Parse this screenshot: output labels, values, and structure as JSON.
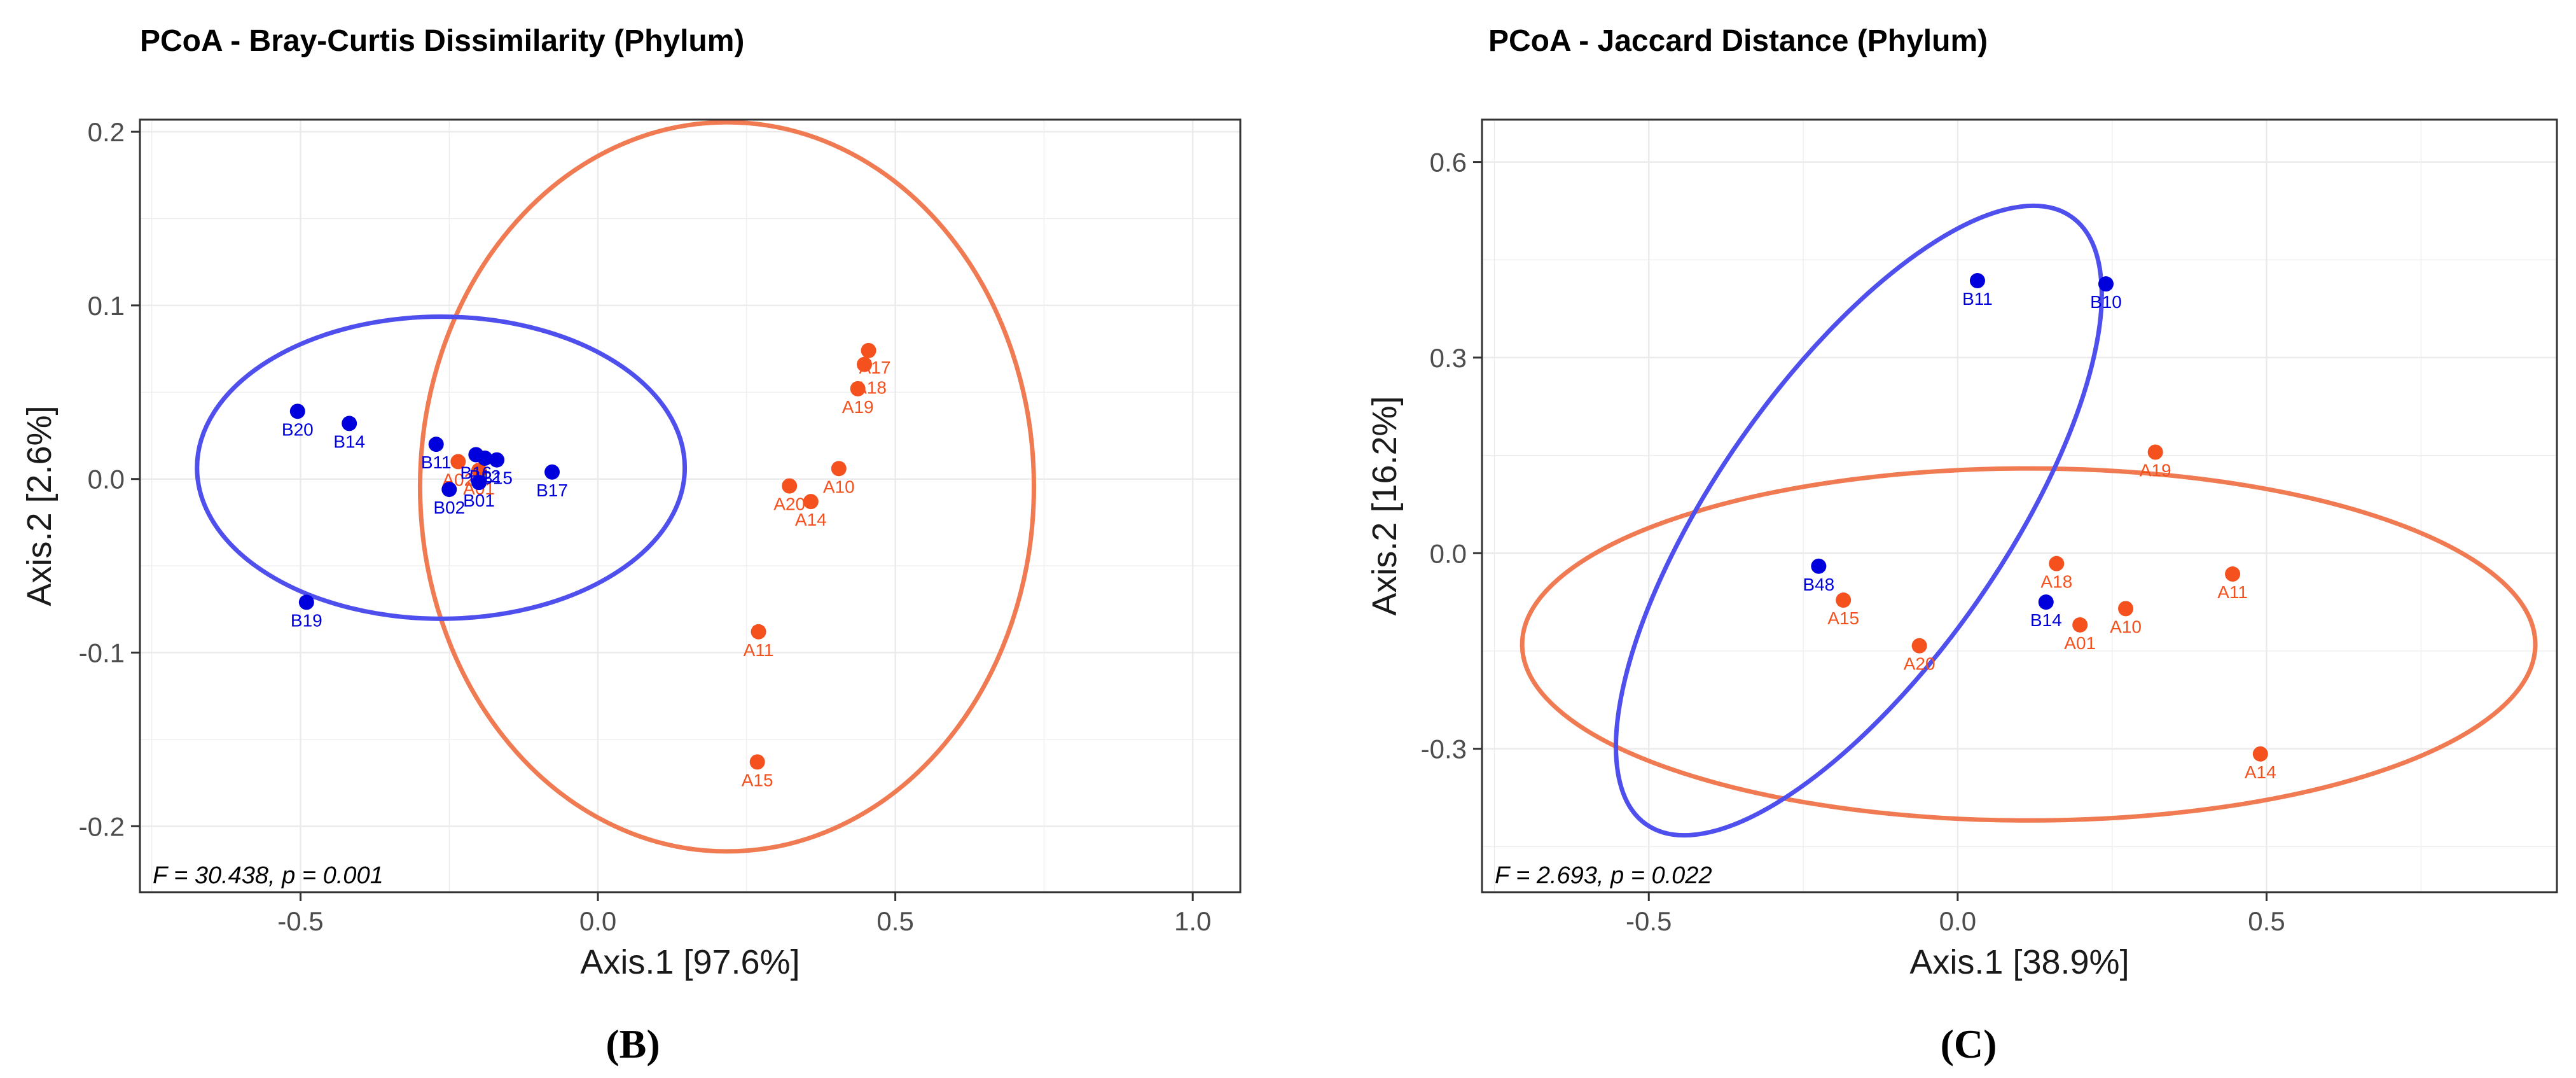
{
  "colors": {
    "group_a": "#f4511e",
    "group_b": "#0000dd",
    "ellipse_a": "#f07a52",
    "ellipse_b": "#4f4fee",
    "overlap": "#8a1fa3"
  },
  "chart_data": [
    {
      "type": "scatter",
      "panel_label": "(B)",
      "title": "PCoA - Bray-Curtis Dissimilarity (Phylum)",
      "xlabel": "Axis.1   [97.6%]",
      "ylabel": "Axis.2   [2.6%]",
      "xlim": [
        -0.77,
        1.08
      ],
      "ylim": [
        -0.238,
        0.207
      ],
      "xticks": [
        -0.5,
        0.0,
        0.5,
        1.0
      ],
      "xtick_labels": [
        "-0.5",
        "0.0",
        "0.5",
        "1.0"
      ],
      "yticks": [
        -0.2,
        -0.1,
        0.0,
        0.1,
        0.2
      ],
      "ytick_labels": [
        "-0.2",
        "-0.1",
        "0.0",
        "0.1",
        "0.2"
      ],
      "annotation": "F = 30.438, p = 0.001",
      "series": [
        {
          "name": "A",
          "color": "#f4511e",
          "points": [
            {
              "label": "A17",
              "x": 0.455,
              "y": 0.074
            },
            {
              "label": "A18",
              "x": 0.448,
              "y": 0.066
            },
            {
              "label": "A19",
              "x": 0.437,
              "y": 0.052
            },
            {
              "label": "A10",
              "x": 0.405,
              "y": 0.006
            },
            {
              "label": "A20",
              "x": 0.322,
              "y": -0.004
            },
            {
              "label": "A14",
              "x": 0.358,
              "y": -0.013
            },
            {
              "label": "A11",
              "x": 0.27,
              "y": -0.088
            },
            {
              "label": "A15",
              "x": 0.268,
              "y": -0.163
            },
            {
              "label": "A02",
              "x": -0.235,
              "y": 0.01
            },
            {
              "label": "A01",
              "x": -0.2,
              "y": 0.005
            }
          ]
        },
        {
          "name": "B",
          "color": "#0000dd",
          "points": [
            {
              "label": "B20",
              "x": -0.505,
              "y": 0.039
            },
            {
              "label": "B14",
              "x": -0.418,
              "y": 0.032
            },
            {
              "label": "B11",
              "x": -0.272,
              "y": 0.02
            },
            {
              "label": "B16",
              "x": -0.205,
              "y": 0.014
            },
            {
              "label": "B12",
              "x": -0.19,
              "y": 0.012
            },
            {
              "label": "B15",
              "x": -0.17,
              "y": 0.011
            },
            {
              "label": "B17",
              "x": -0.077,
              "y": 0.004
            },
            {
              "label": "B02",
              "x": -0.25,
              "y": -0.006
            },
            {
              "label": "B01",
              "x": -0.2,
              "y": -0.002
            },
            {
              "label": "B19",
              "x": -0.49,
              "y": -0.071
            }
          ]
        }
      ],
      "ellipses": [
        {
          "group": "A",
          "cx": 0.217,
          "cy": -0.0045,
          "rx": 0.516,
          "ry": 0.21,
          "rotation_deg": 0,
          "color": "#f07a52"
        },
        {
          "group": "B",
          "cx": -0.264,
          "cy": 0.0065,
          "rx": 0.41,
          "ry": 0.087,
          "rotation_deg": 0,
          "color": "#4f4fee"
        }
      ]
    },
    {
      "type": "scatter",
      "panel_label": "(C)",
      "title": "PCoA - Jaccard Distance (Phylum)",
      "xlabel": "Axis.1   [38.9%]",
      "ylabel": "Axis.2   [16.2%]",
      "xlim": [
        -0.77,
        0.97
      ],
      "ylim": [
        -0.52,
        0.665
      ],
      "xticks": [
        -0.5,
        0.0,
        0.5
      ],
      "xtick_labels": [
        "-0.5",
        "0.0",
        "0.5"
      ],
      "yticks": [
        -0.3,
        0.0,
        0.3,
        0.6
      ],
      "ytick_labels": [
        "-0.3",
        "0.0",
        "0.3",
        "0.6"
      ],
      "annotation": "F = 2.693, p = 0.022",
      "series": [
        {
          "name": "A",
          "color": "#f4511e",
          "points": [
            {
              "label": "A19",
              "x": 0.32,
              "y": 0.155
            },
            {
              "label": "A18",
              "x": 0.16,
              "y": -0.016
            },
            {
              "label": "A11",
              "x": 0.445,
              "y": -0.032
            },
            {
              "label": "A15",
              "x": -0.185,
              "y": -0.072
            },
            {
              "label": "A10",
              "x": 0.272,
              "y": -0.085
            },
            {
              "label": "A01",
              "x": 0.198,
              "y": -0.11
            },
            {
              "label": "A20",
              "x": -0.062,
              "y": -0.142
            },
            {
              "label": "A14",
              "x": 0.49,
              "y": -0.308
            }
          ]
        },
        {
          "name": "B",
          "color": "#0000dd",
          "points": [
            {
              "label": "B11",
              "x": 0.032,
              "y": 0.418
            },
            {
              "label": "B10",
              "x": 0.24,
              "y": 0.413
            },
            {
              "label": "B48",
              "x": -0.225,
              "y": -0.02
            },
            {
              "label": "B14",
              "x": 0.143,
              "y": -0.075
            }
          ]
        }
      ],
      "ellipses": [
        {
          "group": "A",
          "cx": 0.115,
          "cy": -0.14,
          "rx": 0.82,
          "ry": 0.27,
          "rotation_deg": 0,
          "color": "#f07a52"
        },
        {
          "group": "B",
          "cx": -0.16,
          "cy": 0.05,
          "rx": 0.6,
          "ry": 0.22,
          "rotation_deg": 55,
          "color": "#4f4fee"
        }
      ]
    }
  ]
}
